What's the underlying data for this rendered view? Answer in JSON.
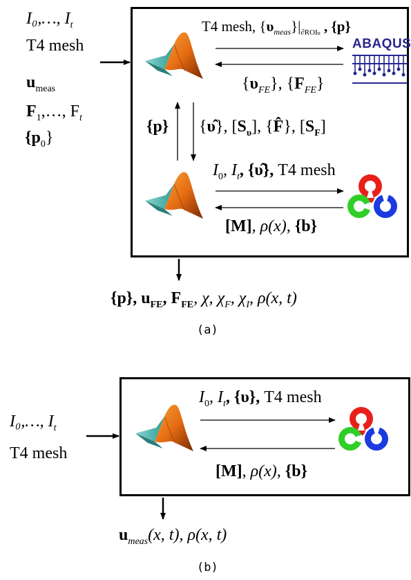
{
  "panel_a": {
    "inputs": {
      "line1": "I₀,…, I",
      "line1_sub": "t",
      "line2": "T4 mesh",
      "line3": "u",
      "line3_sub": "meas",
      "line4": "F",
      "line4_sub1": "1",
      "line4_mid": ",…, F",
      "line4_sub2": "t",
      "line5": "{p",
      "line5_sub": "0",
      "line5_end": "}"
    },
    "top_arrow_label": {
      "prefix": "T4 mesh, {",
      "v": "υ",
      "v_sub": "meas",
      "bar": "}|",
      "bar_sub": "∂ROI",
      "bar_sub2": "u",
      "tail": " , {p}"
    },
    "top_return_label": {
      "open": "{",
      "v": "υ",
      "v_sub": "FE",
      "mid": "}, {",
      "f": "F",
      "f_sub": "FE",
      "close": "}"
    },
    "left_vertical_label": "{p}",
    "right_vertical_label": {
      "t1": "{",
      "t2": "υ̂",
      "t3": "}, [",
      "t4": "S",
      "t4_sub": "υ",
      "t5": "], {",
      "t6": "F̂",
      "t7": "}, [",
      "t8": "S",
      "t8_sub": "F",
      "t9": "]"
    },
    "bottom_arrow_label": {
      "i0": "I",
      "i0_sub": "0",
      "it": ", I",
      "it_sub": "t",
      "v": ", {υ̂}, ",
      "mesh": "T4 mesh"
    },
    "bottom_return_label": {
      "m": "[M]",
      "rho": ", ρ(x), ",
      "b": "{b}"
    },
    "abaqus_logo": "ABAQUS",
    "outputs": {
      "p": "{p}",
      "u": ", u",
      "u_sub": "FE",
      "f": ", F",
      "f_sub": "FE",
      "chi": ", χ, χ",
      "chi_sub1": "F",
      "chi2": ", χ",
      "chi_sub2": "I",
      "rho": ", ρ(x, t)"
    },
    "caption": "(a)"
  },
  "panel_b": {
    "inputs": {
      "line1": "I₀,…, I",
      "line1_sub": "t",
      "line2": "T4 mesh"
    },
    "arrow_label": {
      "i0": "I",
      "i0_sub": "0",
      "it": ", I",
      "it_sub": "t",
      "v": ", {υ}, ",
      "mesh": "T4 mesh"
    },
    "return_label": {
      "m": "[M]",
      "rho": ", ρ(x), ",
      "b": "{b}"
    },
    "outputs": {
      "u": "u",
      "u_sub": "meas",
      "u_tail": "(x, t), ρ(x, t)"
    },
    "caption": "(b)"
  },
  "colors": {
    "matlab_orange": "#e56b12",
    "matlab_teal": "#3fb7b0",
    "opencv_red": "#e8201a",
    "opencv_green": "#2fcf26",
    "opencv_blue": "#1a3be0",
    "abaqus_blue": "#27278f"
  }
}
